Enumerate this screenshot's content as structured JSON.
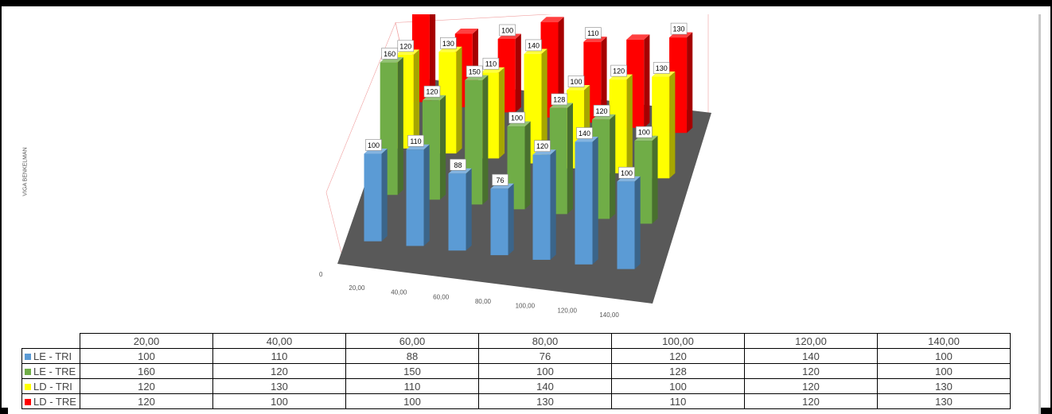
{
  "chart_data": {
    "type": "bar",
    "subtype": "3d-column",
    "ylabel": "VIGA BENKELMAN",
    "y_tick_visible": "0",
    "categories": [
      "20,00",
      "40,00",
      "60,00",
      "80,00",
      "100,00",
      "120,00",
      "140,00"
    ],
    "series": [
      {
        "name": "LE - TRI",
        "color": "#5b9bd5",
        "values": [
          100,
          110,
          88,
          76,
          120,
          140,
          100
        ],
        "labels": [
          "100",
          "110",
          "88",
          "76",
          "120",
          "140",
          "100"
        ]
      },
      {
        "name": "LE - TRE",
        "color": "#70ad47",
        "values": [
          160,
          120,
          150,
          100,
          128,
          120,
          100
        ],
        "labels": [
          "160",
          "120",
          "150",
          "100",
          "128",
          "120",
          "100"
        ]
      },
      {
        "name": "LD - TRI",
        "color": "#ffff00",
        "values": [
          120,
          130,
          110,
          140,
          100,
          120,
          130
        ],
        "labels": [
          "120",
          "130",
          "110",
          "140",
          "100",
          "120",
          "130"
        ]
      },
      {
        "name": "LD - TRE",
        "color": "#ff0000",
        "values": [
          120,
          100,
          100,
          130,
          110,
          120,
          130
        ],
        "labels": [
          "120",
          "",
          "100",
          "",
          "110",
          "",
          "130"
        ]
      }
    ],
    "data_table": true,
    "legend": "data-table"
  }
}
